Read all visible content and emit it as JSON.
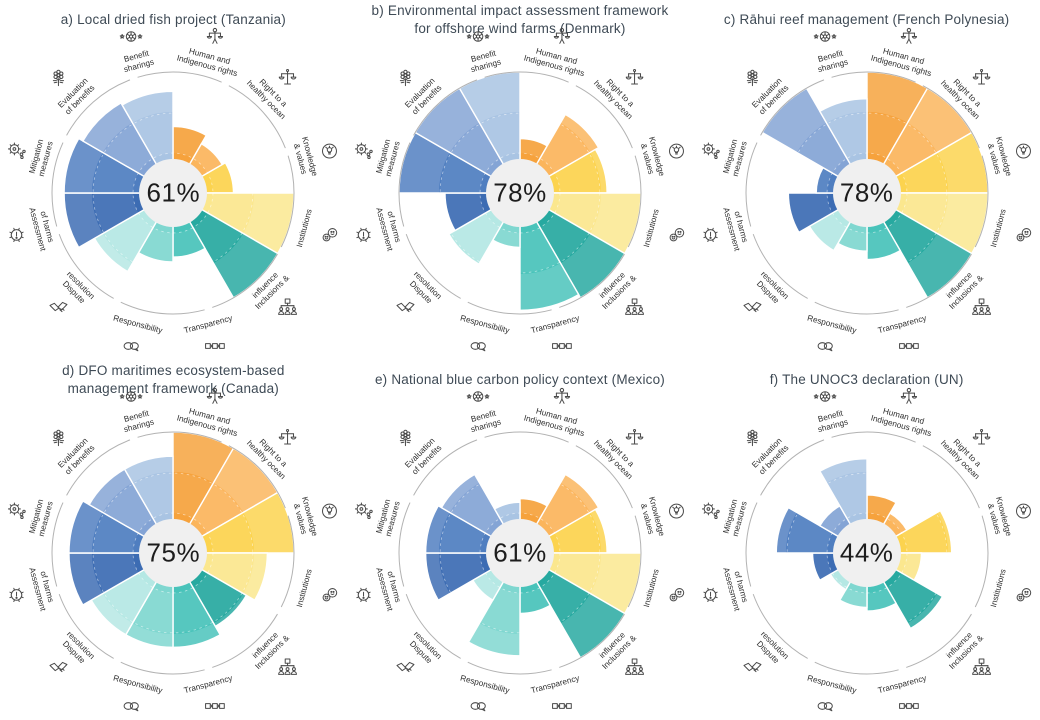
{
  "figure": {
    "background": "#FFFFFF",
    "title_color": "#3E4A55",
    "score_text_color": "#1D1D1D",
    "ring_color": "#B2B2B2",
    "center_disk_color": "#F0F0F0",
    "label_text_color": "#2F2F2F",
    "icon_stroke_color": "#4A4A4A"
  },
  "chart_data": {
    "type": "polar_bar",
    "layout": "2 rows x 3 columns of 12-sector polar (rose) charts",
    "unit": "sector length as fraction of outer ring radius (0 = center, 1 = outer ring)",
    "sector_order": "clockwise starting at 12 o'clock",
    "categories": [
      {
        "id": "human-indigenous-rights",
        "label": "Human and Indigenous rights",
        "label_lines": [
          "Human and",
          "Indigenous rights"
        ],
        "icon": "person-scales-icon",
        "color": "#F6A23C"
      },
      {
        "id": "right-healthy-ocean",
        "label": "Right to a healthy ocean",
        "label_lines": [
          "Right to a",
          "healthy ocean"
        ],
        "icon": "balance-scale-icon",
        "color": "#FBB55C"
      },
      {
        "id": "knowledge-values",
        "label": "Knowledge & values",
        "label_lines": [
          "Knowledge",
          "& values"
        ],
        "icon": "head-lightbulb-icon",
        "color": "#FCD34E"
      },
      {
        "id": "institutions",
        "label": "Institutions",
        "label_lines": [
          "Institutions"
        ],
        "icon": "community-faces-icon",
        "color": "#FBE78E"
      },
      {
        "id": "inclusions-influence",
        "label": "Inclusions & influence",
        "label_lines": [
          "Inclusions &",
          "influence"
        ],
        "icon": "hierarchy-people-icon",
        "color": "#26A9A0"
      },
      {
        "id": "transparency",
        "label": "Transparency",
        "label_lines": [
          "Transparency"
        ],
        "icon": "process-squares-icon",
        "color": "#48C3BA"
      },
      {
        "id": "responsibility",
        "label": "Responsibility",
        "label_lines": [
          "Responsibility"
        ],
        "icon": "speech-bubbles-icon",
        "color": "#7FD7D0"
      },
      {
        "id": "dispute-resolution",
        "label": "Dispute resolution",
        "label_lines": [
          "Dispute",
          "resolution"
        ],
        "icon": "handshake-icon",
        "color": "#B5E8E4"
      },
      {
        "id": "assessment-of-harms",
        "label": "Assessment of harms",
        "label_lines": [
          "Assessment",
          "of harms"
        ],
        "icon": "gear-alert-icon",
        "color": "#3C6CB3"
      },
      {
        "id": "mitigation-measures",
        "label": "Mitigation measures",
        "label_lines": [
          "Mitigation",
          "measures"
        ],
        "icon": "gears-icon",
        "color": "#4F7EC0"
      },
      {
        "id": "evaluation-of-benefits",
        "label": "Evaluation of benefits",
        "label_lines": [
          "Evaluation",
          "of benefits"
        ],
        "icon": "flower-award-icon",
        "color": "#84A4D5"
      },
      {
        "id": "benefit-sharings",
        "label": "Benefit sharings",
        "label_lines": [
          "Benefit",
          "sharings"
        ],
        "icon": "wheel-stars-icon",
        "color": "#A9C4E3"
      }
    ],
    "charts": [
      {
        "letter": "a",
        "title": "a) Local dried fish project (Tanzania)",
        "center_score": "61%",
        "values": [
          0.55,
          0.47,
          0.5,
          1.0,
          1.0,
          0.53,
          0.57,
          0.75,
          0.9,
          0.9,
          0.86,
          0.84
        ]
      },
      {
        "letter": "b",
        "title": "b) Environmental impact assessment framework\nfor offshore wind farms (Denmark)",
        "center_score": "78%",
        "values": [
          0.45,
          0.75,
          0.72,
          1.0,
          1.0,
          0.97,
          0.45,
          0.68,
          0.62,
          1.0,
          1.0,
          1.0
        ]
      },
      {
        "letter": "c",
        "title": "c) Rāhui reef management (French Polynesia)",
        "center_score": "78%",
        "values": [
          1.0,
          1.0,
          1.0,
          1.0,
          1.0,
          0.55,
          0.48,
          0.55,
          0.65,
          0.42,
          1.0,
          0.78
        ]
      },
      {
        "letter": "d",
        "title": "d) DFO maritimes ecosystem-based\nmanagement framework (Canada)",
        "center_score": "75%",
        "values": [
          1.0,
          1.0,
          1.0,
          0.78,
          0.7,
          0.78,
          0.78,
          0.78,
          0.86,
          0.86,
          0.8,
          0.8
        ]
      },
      {
        "letter": "e",
        "title": "e) National blue carbon policy context (Mexico)",
        "center_score": "61%",
        "values": [
          0.45,
          0.75,
          0.72,
          1.0,
          1.0,
          0.5,
          0.85,
          0.45,
          0.78,
          0.78,
          0.75,
          0.42
        ]
      },
      {
        "letter": "f",
        "title": "f) The UNOC3 declaration (UN)",
        "center_score": "44%",
        "values": [
          0.48,
          0.38,
          0.7,
          0.45,
          0.72,
          0.48,
          0.45,
          0.35,
          0.45,
          0.75,
          0.45,
          0.78
        ]
      }
    ]
  }
}
